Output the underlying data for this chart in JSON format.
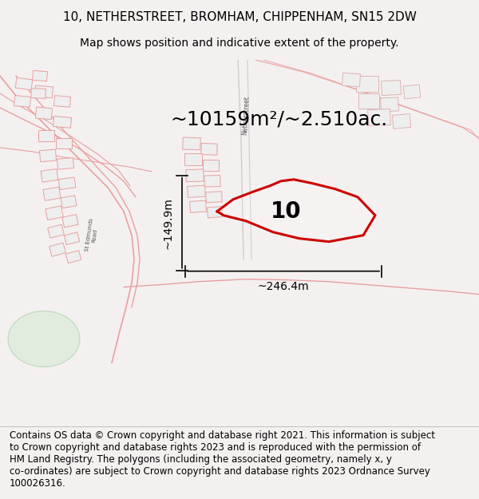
{
  "title_line1": "10, NETHERSTREET, BROMHAM, CHIPPENHAM, SN15 2DW",
  "title_line2": "Map shows position and indicative extent of the property.",
  "area_text": "~10159m²/~2.510ac.",
  "label_number": "10",
  "dim_width": "~246.4m",
  "dim_height": "~149.9m",
  "footer_text": "Contains OS data © Crown copyright and database right 2021. This information is subject\nto Crown copyright and database rights 2023 and is reproduced with the permission of\nHM Land Registry. The polygons (including the associated geometry, namely x, y\nco-ordinates) are subject to Crown copyright and database rights 2023 Ordnance Survey\n100026316.",
  "bg_color": "#f5f0f0",
  "map_bg": "#ffffff",
  "line_color": "#e8a0a0",
  "red_color": "#cc0000",
  "dark_line": "#c87878",
  "footer_bg": "#ffffff",
  "title_fontsize": 11,
  "subtitle_fontsize": 10,
  "area_fontsize": 18,
  "label_fontsize": 20,
  "dim_fontsize": 10,
  "footer_fontsize": 8.5
}
